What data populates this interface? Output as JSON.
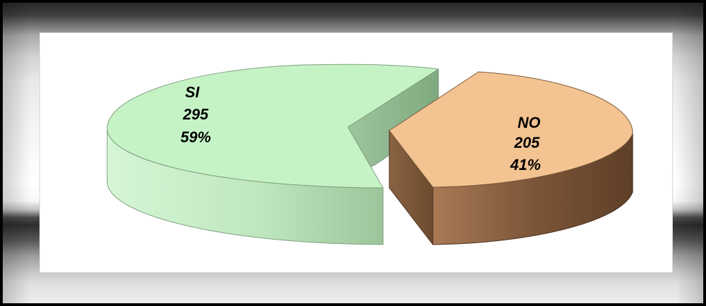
{
  "chart_data": {
    "type": "pie",
    "style": "3d-exploded",
    "title": "",
    "slices": [
      {
        "label": "SI",
        "value": 295,
        "percent": "59%",
        "color": "#c6f1c6",
        "side_color": "#9fc79f",
        "cut_color": "#8fb38f"
      },
      {
        "label": "NO",
        "value": 205,
        "percent": "41%",
        "color": "#f3c391",
        "side_color": "#8a6342",
        "cut_color": "#6f4c30"
      }
    ],
    "legend": "none"
  }
}
